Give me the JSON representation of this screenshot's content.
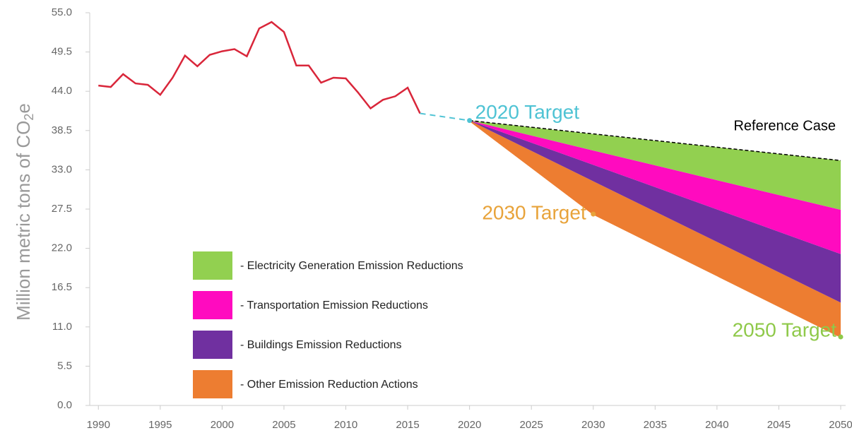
{
  "chart_data": {
    "type": "line",
    "y_label": {
      "text": "Million metric tons of CO",
      "sub": "2",
      "suffix": "e"
    },
    "xlim": [
      1989.3,
      2050.4
    ],
    "ylim": [
      0,
      55
    ],
    "xticks": [
      1990,
      1995,
      2000,
      2005,
      2010,
      2015,
      2020,
      2025,
      2030,
      2035,
      2040,
      2045,
      2050
    ],
    "yticks": [
      {
        "value": 0,
        "label": "0.0"
      },
      {
        "value": 5.5,
        "label": "5.5"
      },
      {
        "value": 11,
        "label": "11.0"
      },
      {
        "value": 16.5,
        "label": "16.5"
      },
      {
        "value": 22,
        "label": "22.0"
      },
      {
        "value": 27.5,
        "label": "27.5"
      },
      {
        "value": 33,
        "label": "33.0"
      },
      {
        "value": 38.5,
        "label": "38.5"
      },
      {
        "value": 44,
        "label": "44.0"
      },
      {
        "value": 49.5,
        "label": "49.5"
      },
      {
        "value": 55,
        "label": "55.0"
      }
    ],
    "historical": {
      "color": "#d9263a",
      "x": [
        1990,
        1991,
        1992,
        1993,
        1994,
        1995,
        1996,
        1997,
        1998,
        1999,
        2000,
        2001,
        2002,
        2003,
        2004,
        2005,
        2006,
        2007,
        2008,
        2009,
        2010,
        2011,
        2012,
        2013,
        2014,
        2015,
        2016
      ],
      "values": [
        44.8,
        44.6,
        46.4,
        45.1,
        44.9,
        43.5,
        45.9,
        49.0,
        47.5,
        49.1,
        49.6,
        49.9,
        48.9,
        52.8,
        53.7,
        52.3,
        47.6,
        47.6,
        45.2,
        45.9,
        45.8,
        43.8,
        41.6,
        42.8,
        43.3,
        44.5,
        40.9
      ]
    },
    "projection": {
      "color": "#4fc3d4",
      "x": [
        2016,
        2020
      ],
      "values": [
        40.9,
        39.9
      ]
    },
    "reference": {
      "name": "Reference Case",
      "color": "#000000",
      "x": [
        2020,
        2050
      ],
      "values": [
        39.9,
        34.3
      ]
    },
    "bands": {
      "x": [
        2020,
        2030,
        2050
      ],
      "base": [
        39.9,
        26.8,
        9.6
      ],
      "series": [
        {
          "name": "- Other Emission Reduction Actions",
          "color": "#ed7d31",
          "values": [
            0,
            4.6,
            4.8
          ]
        },
        {
          "name": "- Buildings Emission Reductions",
          "color": "#7030a0",
          "values": [
            0,
            2.3,
            6.8
          ]
        },
        {
          "name": "- Transportation Emission Reductions",
          "color": "#ff0bbf",
          "values": [
            0,
            2.0,
            6.2
          ]
        },
        {
          "name": "- Electricity Generation Emission Reductions",
          "color": "#92d050",
          "values": [
            0,
            2.3,
            6.9
          ]
        }
      ]
    },
    "targets": [
      {
        "label": "2020 Target",
        "color": "#4fc3d4",
        "x": 2020,
        "value": 39.9
      },
      {
        "label": "2030 Target",
        "color": "#e8a33a",
        "x": 2030,
        "value": 26.8
      },
      {
        "label": "2050 Target",
        "color": "#8fc94a",
        "x": 2050,
        "value": 9.6
      }
    ]
  }
}
